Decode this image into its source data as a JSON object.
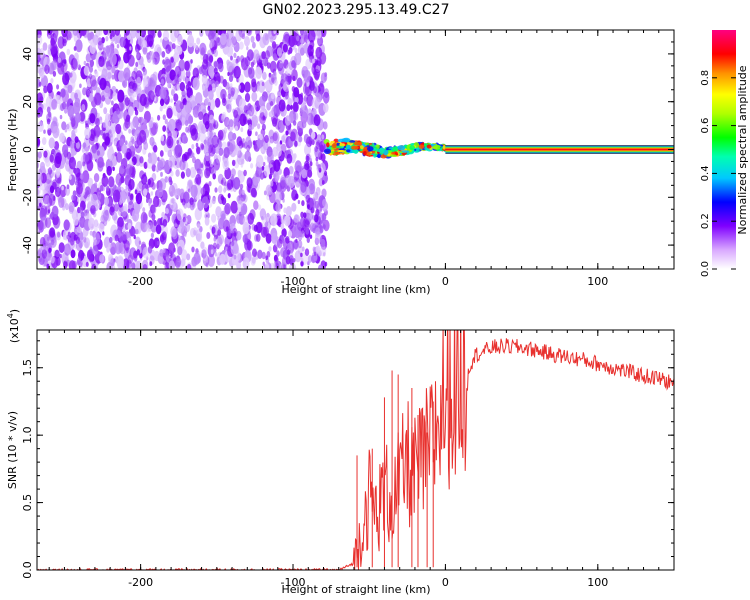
{
  "title": "GN02.2023.295.13.49.C27",
  "chart_data": [
    {
      "type": "heatmap",
      "xlabel": "Height of straight line (km)",
      "ylabel": "Frequency (Hz)",
      "xlim": [
        -268,
        150
      ],
      "ylim": [
        -50,
        50
      ],
      "x_ticks": [
        -200,
        -100,
        0,
        100
      ],
      "y_ticks": [
        -40,
        -20,
        0,
        20,
        40
      ],
      "colorbar": {
        "label": "Normalized spectral amplitude",
        "range": [
          0,
          1
        ],
        "ticks": [
          0.0,
          0.2,
          0.4,
          0.6,
          0.8
        ],
        "tick_labels": [
          "0.0",
          "0.2",
          "0.4",
          "0.6",
          "0.8"
        ]
      },
      "regions": [
        {
          "desc": "broadband noise",
          "x_range": [
            -268,
            -78
          ],
          "freq_range": [
            -50,
            48
          ],
          "amplitude": 0.1
        },
        {
          "desc": "transition",
          "x_range": [
            -78,
            0
          ],
          "freq_range": [
            -6,
            8
          ],
          "amplitude": 0.6
        },
        {
          "desc": "steady line",
          "x_range": [
            0,
            150
          ],
          "freq": 0,
          "amplitude": 0.9
        }
      ]
    },
    {
      "type": "line",
      "xlabel": "Height of straight line (km)",
      "ylabel": "SNR (10 * v/v)",
      "y_multiplier": "(x10",
      "y_multiplier_exp": "4",
      "y_multiplier_close": ")",
      "xlim": [
        -268,
        150
      ],
      "ylim": [
        0,
        1.78
      ],
      "x_ticks": [
        -200,
        -100,
        0,
        100
      ],
      "y_ticks": [
        0,
        0.5,
        1,
        1.5
      ],
      "y_tick_labels": [
        "0.0",
        "0.5",
        "1.0",
        "1.5"
      ],
      "color": "#e8312e",
      "series": [
        {
          "x": [
            -268,
            -200,
            -150,
            -100,
            -70,
            -60,
            -55,
            -50,
            -45,
            -40,
            -35,
            -30,
            -25,
            -20,
            -15,
            -10,
            -5,
            0,
            5,
            10,
            15,
            20,
            25,
            30,
            40,
            50,
            60,
            70,
            80,
            90,
            100,
            110,
            120,
            130,
            140,
            150
          ],
          "values": [
            0.0,
            0.0,
            0.0,
            0.0,
            0.0,
            0.05,
            0.3,
            0.55,
            0.4,
            0.6,
            0.5,
            0.65,
            0.8,
            0.7,
            0.8,
            0.9,
            1.1,
            1.3,
            1.35,
            1.45,
            1.5,
            1.6,
            1.62,
            1.65,
            1.66,
            1.65,
            1.63,
            1.6,
            1.58,
            1.56,
            1.53,
            1.5,
            1.47,
            1.44,
            1.42,
            1.38
          ]
        }
      ],
      "spikes": [
        {
          "x": -58,
          "y": 0.85
        },
        {
          "x": -48,
          "y": 0.9
        },
        {
          "x": -40,
          "y": 1.28
        },
        {
          "x": -35,
          "y": 1.48
        },
        {
          "x": -31,
          "y": 1.45
        },
        {
          "x": -22,
          "y": 1.35
        },
        {
          "x": -18,
          "y": 1.15
        },
        {
          "x": -12,
          "y": 1.02
        },
        {
          "x": -8,
          "y": 1.25
        }
      ],
      "noise_amplitude": 0.02
    }
  ]
}
